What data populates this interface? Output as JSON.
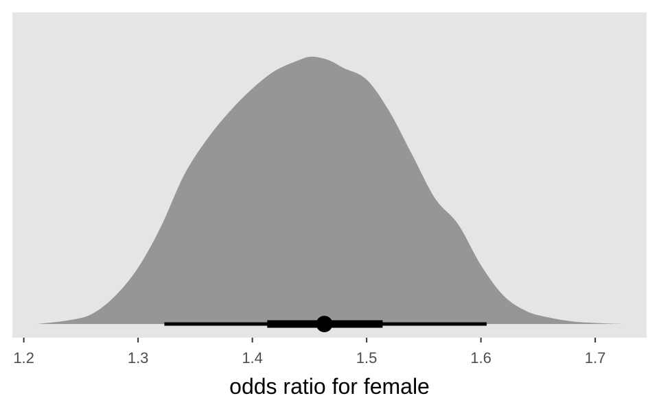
{
  "chart_data": {
    "type": "area",
    "title": "",
    "xlabel": "odds ratio for female",
    "ylabel": "",
    "xlim": [
      1.19,
      1.745
    ],
    "x_ticks": [
      1.2,
      1.3,
      1.4,
      1.5,
      1.6,
      1.7
    ],
    "x_tick_labels": [
      "1.2",
      "1.3",
      "1.4",
      "1.5",
      "1.6",
      "1.7"
    ],
    "grid": false,
    "density": {
      "x": [
        1.212,
        1.24,
        1.26,
        1.28,
        1.3,
        1.32,
        1.34,
        1.36,
        1.38,
        1.4,
        1.42,
        1.44,
        1.45,
        1.46,
        1.47,
        1.48,
        1.5,
        1.52,
        1.54,
        1.56,
        1.58,
        1.6,
        1.62,
        1.64,
        1.66,
        1.68,
        1.7,
        1.724
      ],
      "y": [
        0.0,
        0.015,
        0.04,
        0.11,
        0.22,
        0.38,
        0.58,
        0.72,
        0.83,
        0.92,
        0.99,
        1.03,
        1.044,
        1.04,
        1.025,
        1.0,
        0.955,
        0.83,
        0.66,
        0.49,
        0.39,
        0.23,
        0.11,
        0.05,
        0.025,
        0.01,
        0.004,
        0.0
      ]
    },
    "point_interval": {
      "point": 1.463,
      "inner": [
        1.413,
        1.514
      ],
      "outer": [
        1.323,
        1.605
      ]
    },
    "colors": {
      "panel": "#e5e5e5",
      "density_fill": "#969696",
      "interval": "#000000",
      "axis_text": "#4d4d4d"
    }
  }
}
